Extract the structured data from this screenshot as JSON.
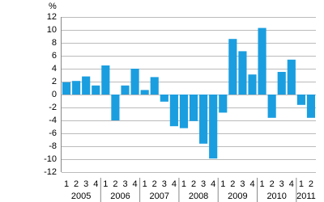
{
  "chart_data": {
    "type": "bar",
    "y_unit": "%",
    "categories": [
      "1",
      "2",
      "3",
      "4",
      "1",
      "2",
      "3",
      "4",
      "1",
      "2",
      "3",
      "4",
      "1",
      "2",
      "3",
      "4",
      "1",
      "2",
      "3",
      "4",
      "1",
      "2",
      "3",
      "4",
      "1",
      "2"
    ],
    "year_labels": [
      "2005",
      "2006",
      "2007",
      "2008",
      "2009",
      "2010",
      "2011"
    ],
    "values": [
      1.9,
      2.1,
      2.8,
      1.4,
      4.5,
      -4.0,
      1.4,
      4.0,
      0.7,
      2.7,
      -1.1,
      -4.9,
      -5.2,
      -4.1,
      -7.6,
      -9.9,
      -2.8,
      8.6,
      6.7,
      3.1,
      10.3,
      -3.6,
      3.5,
      5.4,
      -1.6,
      -3.6
    ],
    "color": "#1a9ee0",
    "ylim": [
      -12,
      12
    ],
    "yticks": [
      -12,
      -10,
      -8,
      -6,
      -4,
      -2,
      0,
      2,
      4,
      6,
      8,
      10,
      12
    ],
    "grid": true
  }
}
